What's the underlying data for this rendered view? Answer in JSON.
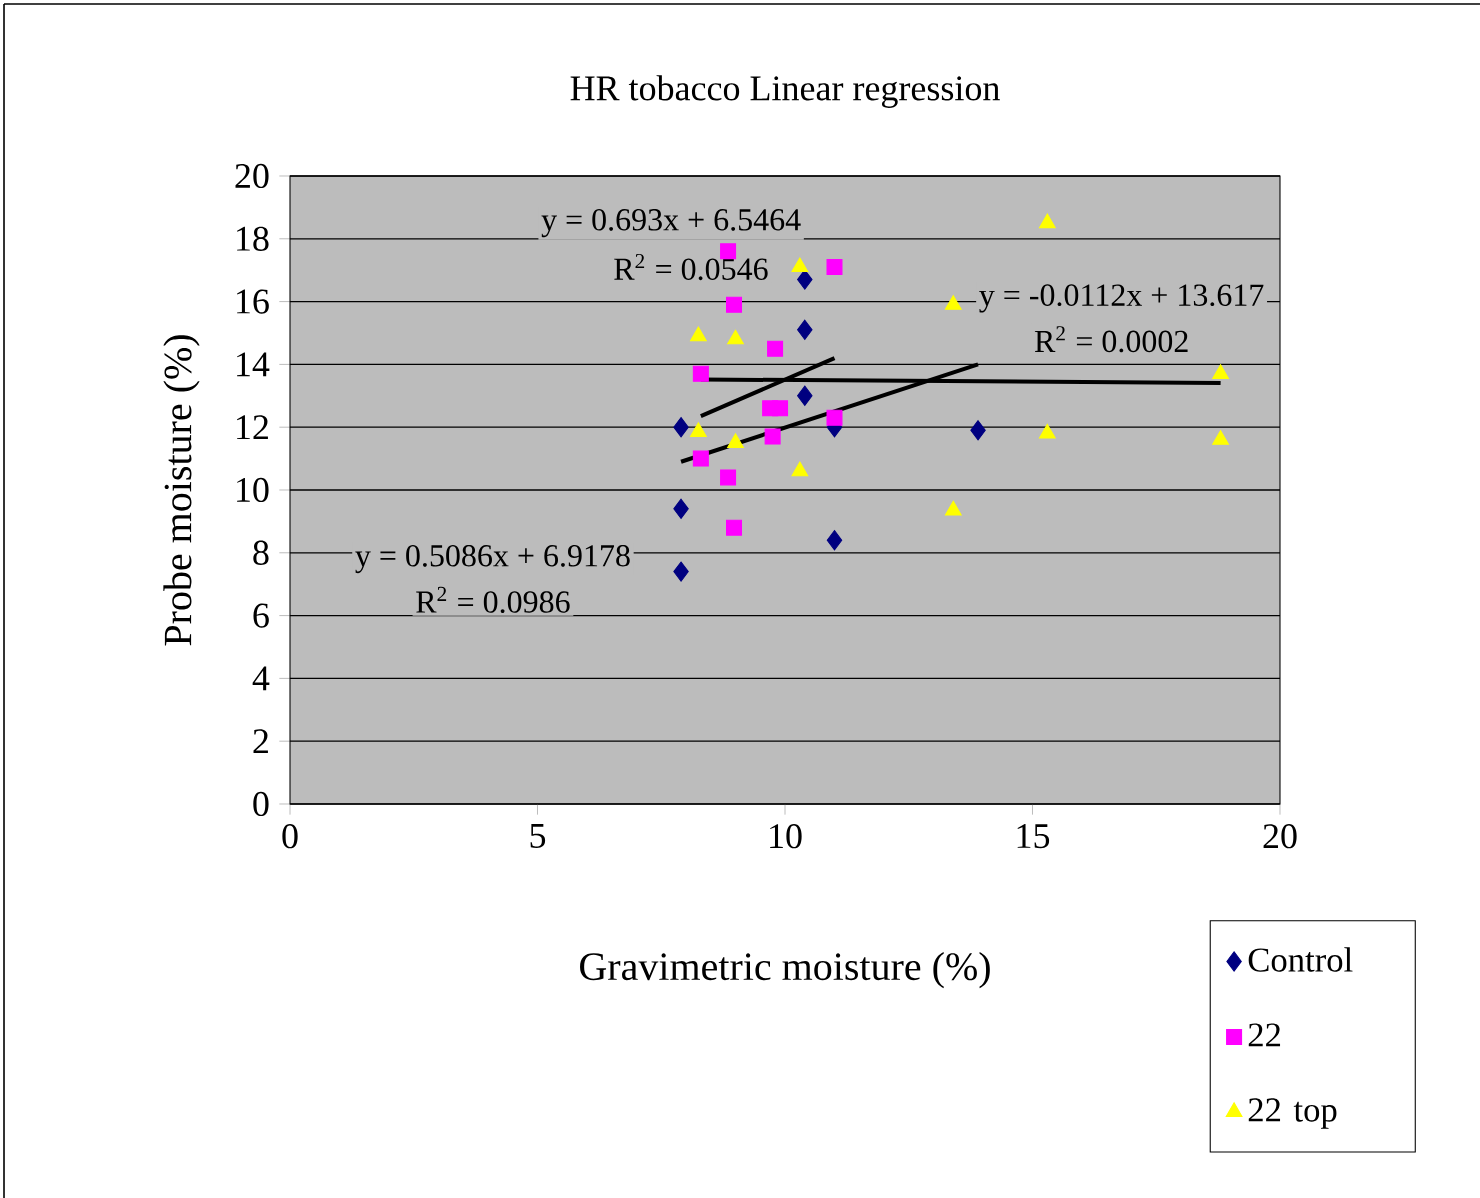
{
  "chart_data": {
    "type": "scatter",
    "title": "HR tobacco Linear regression",
    "xlabel": "Gravimetric moisture (%)",
    "ylabel": "Probe moisture (%)",
    "xlim": [
      0,
      20
    ],
    "xticks": [
      0,
      5,
      10,
      15,
      20
    ],
    "ylim": [
      0,
      20
    ],
    "yticks": [
      0,
      2,
      4,
      6,
      8,
      10,
      12,
      14,
      16,
      18,
      20
    ],
    "grid": "y",
    "legend": "bottom right",
    "series": [
      {
        "name": "Control",
        "color": "#000080",
        "marker": "diamond",
        "x": [
          10.4,
          10.4,
          10.4,
          7.9,
          11.0,
          7.9,
          7.9,
          11.0,
          13.9
        ],
        "values": [
          16.7,
          15.1,
          13.0,
          12.0,
          12.0,
          9.4,
          7.4,
          8.4,
          11.9
        ]
      },
      {
        "name": "22",
        "color": "#ff00ff",
        "marker": "square",
        "x": [
          8.85,
          11.0,
          8.97,
          9.8,
          8.3,
          9.7,
          9.9,
          11.0,
          9.75,
          8.3,
          8.85,
          8.97
        ],
        "values": [
          17.6,
          17.1,
          15.9,
          14.5,
          13.7,
          12.6,
          12.6,
          12.3,
          11.7,
          11.0,
          10.4,
          8.8
        ]
      },
      {
        "name": "22 top",
        "color": "#ffff00",
        "marker": "triangle",
        "x": [
          10.3,
          13.4,
          8.25,
          9.0,
          8.25,
          9.0,
          10.3,
          13.4,
          15.3,
          15.3,
          18.8,
          18.8
        ],
        "values": [
          17.1,
          15.9,
          14.9,
          14.8,
          11.85,
          11.5,
          10.6,
          9.35,
          18.5,
          11.8,
          13.7,
          11.6
        ]
      },
      {
        "type": "line",
        "color": "#000000",
        "marker": "none",
        "x": [
          7.9,
          13.9
        ],
        "values": [
          10.9,
          14.0
        ]
      },
      {
        "type": "line",
        "color": "#000000",
        "marker": "none",
        "x": [
          8.3,
          11.0
        ],
        "values": [
          12.35,
          14.2
        ]
      },
      {
        "type": "line",
        "color": "#000000",
        "marker": "none",
        "x": [
          8.3,
          18.8
        ],
        "values": [
          13.52,
          13.41
        ]
      }
    ],
    "annotations": [
      "y = 0.693x + 6.5464",
      "R$^{2}$ = 0.0546",
      "y = -0.0112x + 13.617",
      "R$^{2}$ = 0.0002",
      "y = 0.5086x + 6.9178",
      "R$^{2}$ = 0.0986"
    ]
  }
}
